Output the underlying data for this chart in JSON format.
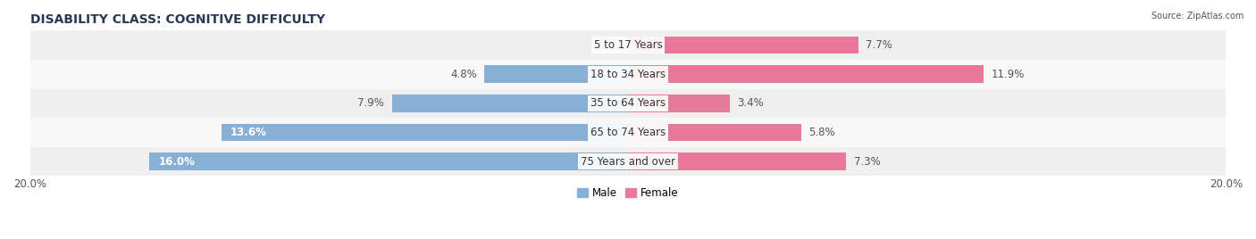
{
  "title": "DISABILITY CLASS: COGNITIVE DIFFICULTY",
  "source": "Source: ZipAtlas.com",
  "categories": [
    "5 to 17 Years",
    "18 to 34 Years",
    "35 to 64 Years",
    "65 to 74 Years",
    "75 Years and over"
  ],
  "male_values": [
    0.0,
    4.8,
    7.9,
    13.6,
    16.0
  ],
  "female_values": [
    7.7,
    11.9,
    3.4,
    5.8,
    7.3
  ],
  "male_color": "#88afd4",
  "female_color": "#e8799a",
  "male_label": "Male",
  "female_label": "Female",
  "xlim": 20.0,
  "bar_height": 0.6,
  "row_bg_color_0": "#efefef",
  "row_bg_color_1": "#f8f8f8",
  "title_fontsize": 10,
  "label_fontsize": 8.5,
  "tick_fontsize": 8.5,
  "category_fontsize": 8.5,
  "title_color": "#2b3a52",
  "text_color": "#555555",
  "inside_label_color": "#ffffff"
}
